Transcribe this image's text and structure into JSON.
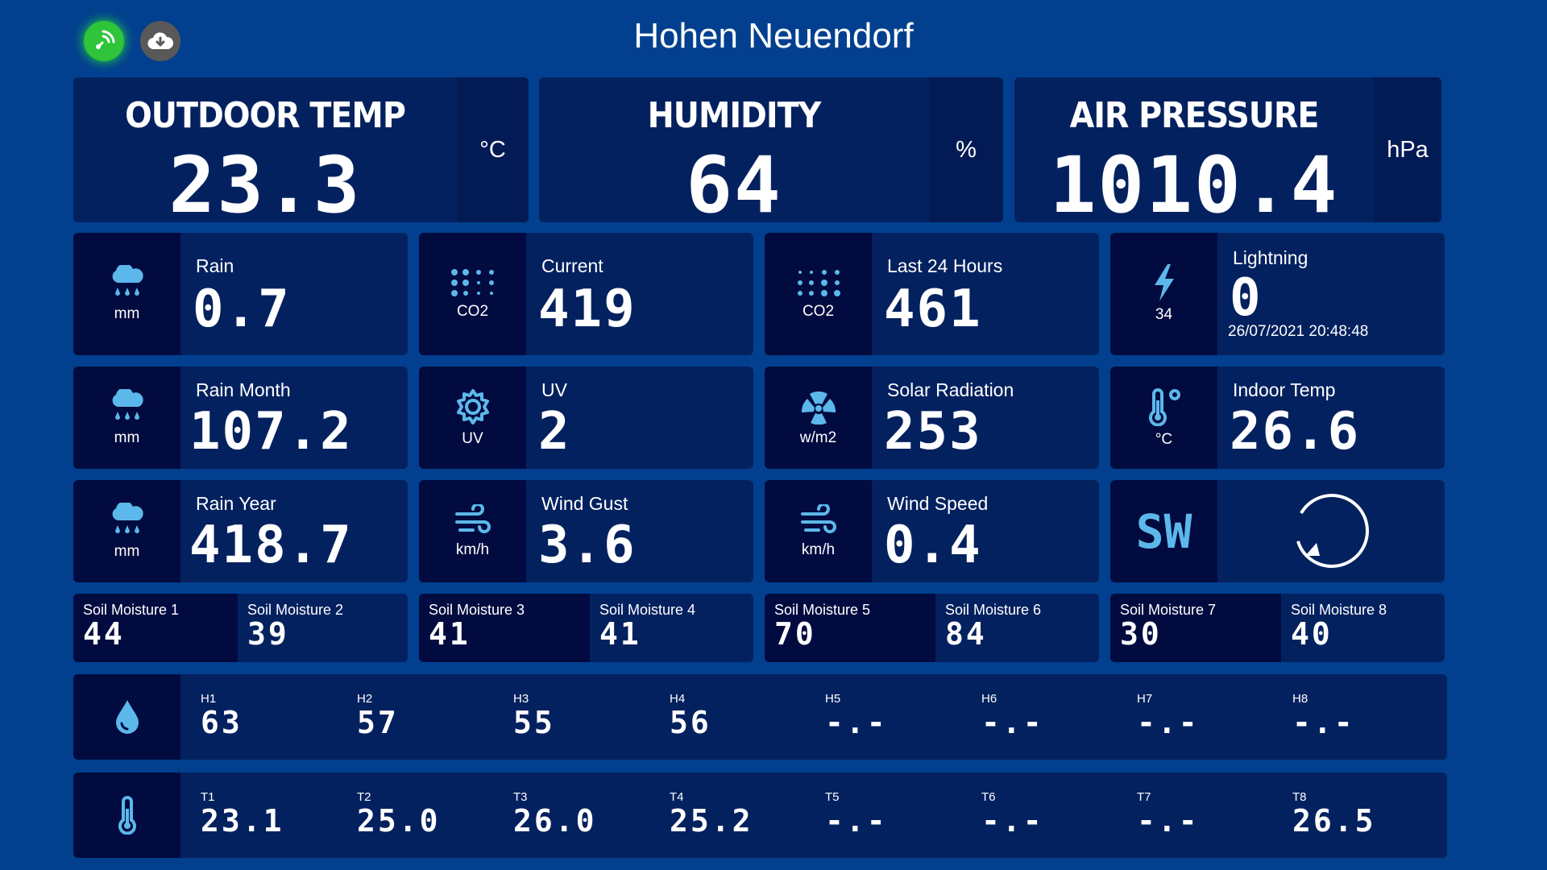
{
  "header": {
    "title": "Hohen Neuendorf",
    "live_icon": "live-signal-icon",
    "download_icon": "cloud-download-icon"
  },
  "main": [
    {
      "label": "OUTDOOR TEMP",
      "value": "23.3",
      "unit": "°C"
    },
    {
      "label": "HUMIDITY",
      "value": "64",
      "unit": "%"
    },
    {
      "label": "AIR PRESSURE",
      "value": "1010.4",
      "unit": "hPa"
    }
  ],
  "tiles": {
    "rain": {
      "label": "Rain",
      "value": "0.7",
      "unit": "mm",
      "icon": "rain-cloud-icon"
    },
    "co2_current": {
      "label": "Current",
      "value": "419",
      "unit": "CO2",
      "icon": "co2-dots-icon"
    },
    "co2_24h": {
      "label": "Last 24 Hours",
      "value": "461",
      "unit": "CO2",
      "icon": "co2-dots-icon"
    },
    "lightning": {
      "label": "Lightning",
      "value": "0",
      "unit": "34",
      "date": "26/07/2021 20:48:48",
      "icon": "lightning-bolt-icon"
    },
    "rain_month": {
      "label": "Rain Month",
      "value": "107.2",
      "unit": "mm",
      "icon": "rain-cloud-icon"
    },
    "uv": {
      "label": "UV",
      "value": "2",
      "unit": "UV",
      "icon": "sun-gear-icon"
    },
    "solar": {
      "label": "Solar Radiation",
      "value": "253",
      "unit": "w/m2",
      "icon": "radiation-icon"
    },
    "indoor_temp": {
      "label": "Indoor Temp",
      "value": "26.6",
      "unit": "°C",
      "icon": "thermometer-degree-icon"
    },
    "rain_year": {
      "label": "Rain Year",
      "value": "418.7",
      "unit": "mm",
      "icon": "rain-cloud-icon"
    },
    "wind_gust": {
      "label": "Wind Gust",
      "value": "3.6",
      "unit": "km/h",
      "icon": "wind-icon"
    },
    "wind_speed": {
      "label": "Wind Speed",
      "value": "0.4",
      "unit": "km/h",
      "icon": "wind-icon"
    },
    "wind_dir": {
      "value": "SW",
      "icon": "wind-direction-compass-icon"
    }
  },
  "soil": [
    {
      "label": "Soil Moisture 1",
      "value": "44"
    },
    {
      "label": "Soil Moisture 2",
      "value": "39"
    },
    {
      "label": "Soil Moisture 3",
      "value": "41"
    },
    {
      "label": "Soil Moisture 4",
      "value": "41"
    },
    {
      "label": "Soil Moisture 5",
      "value": "70"
    },
    {
      "label": "Soil Moisture 6",
      "value": "84"
    },
    {
      "label": "Soil Moisture 7",
      "value": "30"
    },
    {
      "label": "Soil Moisture 8",
      "value": "40"
    }
  ],
  "humidity_sensors": {
    "icon": "water-drop-icon",
    "items": [
      {
        "label": "H1",
        "value": "63"
      },
      {
        "label": "H2",
        "value": "57"
      },
      {
        "label": "H3",
        "value": "55"
      },
      {
        "label": "H4",
        "value": "56"
      },
      {
        "label": "H5",
        "value": "-.-"
      },
      {
        "label": "H6",
        "value": "-.-"
      },
      {
        "label": "H7",
        "value": "-.-"
      },
      {
        "label": "H8",
        "value": "-.-"
      }
    ]
  },
  "temp_sensors": {
    "icon": "thermometer-icon",
    "items": [
      {
        "label": "T1",
        "value": "23.1"
      },
      {
        "label": "T2",
        "value": "25.0"
      },
      {
        "label": "T3",
        "value": "26.0"
      },
      {
        "label": "T4",
        "value": "25.2"
      },
      {
        "label": "T5",
        "value": "-.-"
      },
      {
        "label": "T6",
        "value": "-.-"
      },
      {
        "label": "T7",
        "value": "-.-"
      },
      {
        "label": "T8",
        "value": "26.5"
      }
    ]
  },
  "colors": {
    "background": "#02408f",
    "panel": "#04215f",
    "panel_dark": "#010b3f",
    "icon_blue": "#5cb8ea",
    "live_green": "#2fc43a"
  }
}
